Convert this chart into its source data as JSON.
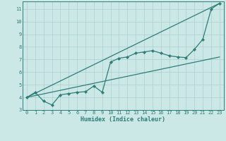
{
  "title": "",
  "xlabel": "Humidex (Indice chaleur)",
  "ylabel": "",
  "bg_color": "#cce8e6",
  "grid_color": "#aacfcd",
  "line_color": "#2d7d78",
  "xlim": [
    -0.5,
    23.5
  ],
  "ylim": [
    3,
    11.6
  ],
  "xticks": [
    0,
    1,
    2,
    3,
    4,
    5,
    6,
    7,
    8,
    9,
    10,
    11,
    12,
    13,
    14,
    15,
    16,
    17,
    18,
    19,
    20,
    21,
    22,
    23
  ],
  "yticks": [
    3,
    4,
    5,
    6,
    7,
    8,
    9,
    10,
    11
  ],
  "line1_x": [
    0,
    1,
    2,
    3,
    4,
    5,
    6,
    7,
    8,
    9,
    10,
    11,
    12,
    13,
    14,
    15,
    16,
    17,
    18,
    19,
    20,
    21,
    22,
    23
  ],
  "line1_y": [
    4.0,
    4.4,
    3.7,
    3.4,
    4.2,
    4.3,
    4.4,
    4.45,
    4.9,
    4.4,
    6.8,
    7.1,
    7.2,
    7.5,
    7.6,
    7.7,
    7.5,
    7.3,
    7.2,
    7.15,
    7.8,
    8.6,
    11.0,
    11.45
  ],
  "line2_x": [
    0,
    23
  ],
  "line2_y": [
    4.0,
    11.45
  ],
  "line3_x": [
    0,
    23
  ],
  "line3_y": [
    4.0,
    7.2
  ],
  "tick_fontsize": 5.0,
  "xlabel_fontsize": 6.0,
  "lw": 0.9,
  "marker_size": 2.2
}
